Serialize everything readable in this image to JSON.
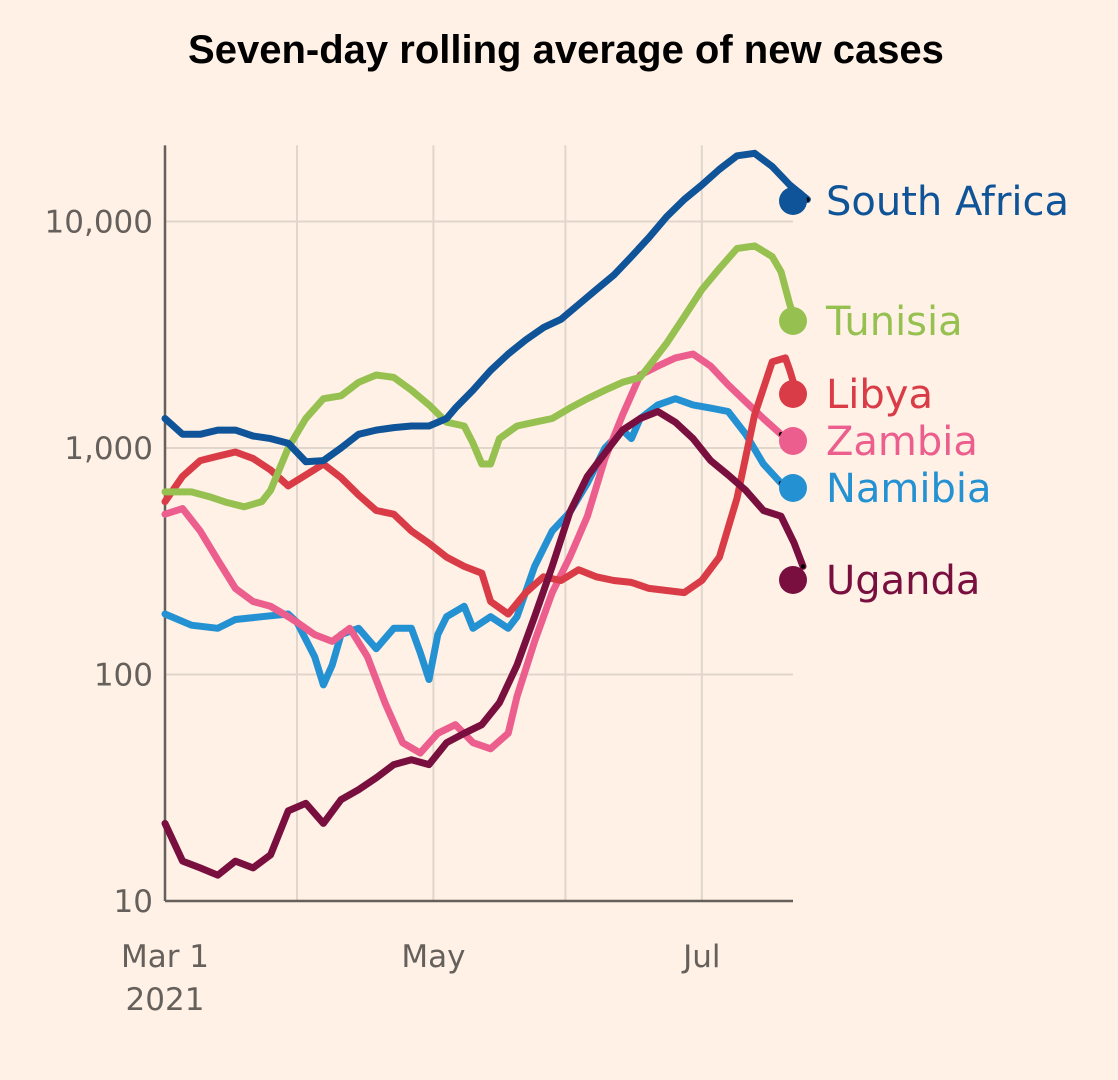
{
  "chart_data": {
    "type": "line",
    "title": "Seven-day rolling average of new cases",
    "xlabel": "",
    "ylabel": "",
    "yscale": "log",
    "ylim": [
      10,
      20000
    ],
    "yticks": [
      {
        "value": 10,
        "label": "10"
      },
      {
        "value": 100,
        "label": "100"
      },
      {
        "value": 1000,
        "label": "1,000"
      },
      {
        "value": 10000,
        "label": "10,000"
      }
    ],
    "x_unit": "days since Mar 1 2021",
    "xlim": [
      0,
      140
    ],
    "xgrid_days": [
      0,
      30,
      61,
      91,
      122
    ],
    "xticks": [
      {
        "day": 0,
        "label": "Mar 1",
        "sublabel": "2021"
      },
      {
        "day": 61,
        "label": "May",
        "sublabel": ""
      },
      {
        "day": 122,
        "label": "Jul",
        "sublabel": ""
      }
    ],
    "series": [
      {
        "name": "Namibia",
        "color": "#2491d3",
        "points": [
          [
            0,
            185
          ],
          [
            6,
            165
          ],
          [
            12,
            160
          ],
          [
            16,
            175
          ],
          [
            22,
            180
          ],
          [
            28,
            185
          ],
          [
            30,
            170
          ],
          [
            34,
            120
          ],
          [
            36,
            90
          ],
          [
            38,
            110
          ],
          [
            40,
            150
          ],
          [
            44,
            160
          ],
          [
            48,
            130
          ],
          [
            52,
            160
          ],
          [
            56,
            160
          ],
          [
            58,
            125
          ],
          [
            60,
            95
          ],
          [
            62,
            150
          ],
          [
            64,
            180
          ],
          [
            68,
            200
          ],
          [
            70,
            160
          ],
          [
            74,
            180
          ],
          [
            78,
            160
          ],
          [
            80,
            180
          ],
          [
            84,
            300
          ],
          [
            88,
            430
          ],
          [
            92,
            520
          ],
          [
            96,
            700
          ],
          [
            100,
            1000
          ],
          [
            104,
            1200
          ],
          [
            106,
            1100
          ],
          [
            108,
            1350
          ],
          [
            112,
            1550
          ],
          [
            116,
            1650
          ],
          [
            120,
            1550
          ],
          [
            124,
            1500
          ],
          [
            128,
            1450
          ],
          [
            132,
            1150
          ],
          [
            136,
            850
          ],
          [
            140,
            700
          ]
        ]
      },
      {
        "name": "Zambia",
        "color": "#eb5e8d",
        "points": [
          [
            0,
            510
          ],
          [
            4,
            540
          ],
          [
            8,
            430
          ],
          [
            12,
            320
          ],
          [
            16,
            240
          ],
          [
            20,
            210
          ],
          [
            24,
            200
          ],
          [
            28,
            180
          ],
          [
            30,
            170
          ],
          [
            34,
            150
          ],
          [
            38,
            140
          ],
          [
            42,
            160
          ],
          [
            46,
            120
          ],
          [
            50,
            75
          ],
          [
            54,
            50
          ],
          [
            58,
            45
          ],
          [
            62,
            55
          ],
          [
            66,
            60
          ],
          [
            70,
            50
          ],
          [
            74,
            47
          ],
          [
            78,
            55
          ],
          [
            80,
            80
          ],
          [
            84,
            140
          ],
          [
            88,
            230
          ],
          [
            92,
            330
          ],
          [
            96,
            500
          ],
          [
            100,
            900
          ],
          [
            104,
            1400
          ],
          [
            108,
            2100
          ],
          [
            112,
            2300
          ],
          [
            116,
            2500
          ],
          [
            120,
            2600
          ],
          [
            124,
            2300
          ],
          [
            128,
            1900
          ],
          [
            132,
            1600
          ],
          [
            136,
            1350
          ],
          [
            140,
            1150
          ]
        ]
      },
      {
        "name": "Libya",
        "color": "#d93c46",
        "points": [
          [
            0,
            580
          ],
          [
            4,
            750
          ],
          [
            8,
            880
          ],
          [
            12,
            920
          ],
          [
            16,
            960
          ],
          [
            20,
            900
          ],
          [
            24,
            800
          ],
          [
            28,
            680
          ],
          [
            32,
            760
          ],
          [
            36,
            850
          ],
          [
            40,
            740
          ],
          [
            44,
            620
          ],
          [
            48,
            530
          ],
          [
            52,
            510
          ],
          [
            56,
            430
          ],
          [
            60,
            380
          ],
          [
            64,
            330
          ],
          [
            68,
            300
          ],
          [
            72,
            280
          ],
          [
            74,
            210
          ],
          [
            78,
            185
          ],
          [
            82,
            230
          ],
          [
            86,
            270
          ],
          [
            90,
            260
          ],
          [
            94,
            290
          ],
          [
            98,
            270
          ],
          [
            102,
            260
          ],
          [
            106,
            255
          ],
          [
            110,
            240
          ],
          [
            114,
            235
          ],
          [
            118,
            230
          ],
          [
            122,
            260
          ],
          [
            126,
            330
          ],
          [
            130,
            600
          ],
          [
            134,
            1400
          ],
          [
            138,
            2400
          ],
          [
            141,
            2500
          ],
          [
            142,
            2200
          ],
          [
            143,
            1900
          ]
        ]
      },
      {
        "name": "Tunisia",
        "color": "#96c151",
        "points": [
          [
            0,
            640
          ],
          [
            6,
            640
          ],
          [
            10,
            610
          ],
          [
            14,
            575
          ],
          [
            18,
            550
          ],
          [
            22,
            580
          ],
          [
            24,
            650
          ],
          [
            28,
            1000
          ],
          [
            32,
            1350
          ],
          [
            36,
            1650
          ],
          [
            40,
            1700
          ],
          [
            44,
            1950
          ],
          [
            48,
            2100
          ],
          [
            52,
            2050
          ],
          [
            56,
            1800
          ],
          [
            60,
            1550
          ],
          [
            64,
            1300
          ],
          [
            68,
            1250
          ],
          [
            70,
            1050
          ],
          [
            72,
            850
          ],
          [
            74,
            850
          ],
          [
            76,
            1100
          ],
          [
            80,
            1250
          ],
          [
            84,
            1300
          ],
          [
            88,
            1350
          ],
          [
            92,
            1500
          ],
          [
            96,
            1650
          ],
          [
            100,
            1800
          ],
          [
            104,
            1950
          ],
          [
            108,
            2050
          ],
          [
            110,
            2300
          ],
          [
            114,
            2900
          ],
          [
            118,
            3800
          ],
          [
            122,
            5000
          ],
          [
            126,
            6200
          ],
          [
            130,
            7600
          ],
          [
            134,
            7800
          ],
          [
            138,
            7000
          ],
          [
            140,
            6000
          ],
          [
            142,
            4300
          ],
          [
            143,
            3800
          ]
        ]
      },
      {
        "name": "South Africa",
        "color": "#0f5499",
        "points": [
          [
            0,
            1350
          ],
          [
            4,
            1150
          ],
          [
            8,
            1150
          ],
          [
            12,
            1200
          ],
          [
            16,
            1200
          ],
          [
            20,
            1130
          ],
          [
            24,
            1100
          ],
          [
            28,
            1050
          ],
          [
            32,
            870
          ],
          [
            36,
            880
          ],
          [
            40,
            1000
          ],
          [
            44,
            1150
          ],
          [
            48,
            1200
          ],
          [
            52,
            1230
          ],
          [
            56,
            1250
          ],
          [
            60,
            1250
          ],
          [
            64,
            1350
          ],
          [
            66,
            1500
          ],
          [
            70,
            1800
          ],
          [
            74,
            2200
          ],
          [
            78,
            2600
          ],
          [
            82,
            3000
          ],
          [
            86,
            3400
          ],
          [
            90,
            3700
          ],
          [
            94,
            4300
          ],
          [
            98,
            5000
          ],
          [
            102,
            5800
          ],
          [
            106,
            7000
          ],
          [
            110,
            8500
          ],
          [
            114,
            10500
          ],
          [
            118,
            12500
          ],
          [
            122,
            14500
          ],
          [
            126,
            17000
          ],
          [
            130,
            19500
          ],
          [
            134,
            20000
          ],
          [
            138,
            17500
          ],
          [
            142,
            14500
          ],
          [
            146,
            12500
          ]
        ]
      },
      {
        "name": "Uganda",
        "color": "#790f3e",
        "points": [
          [
            0,
            22
          ],
          [
            4,
            15
          ],
          [
            8,
            14
          ],
          [
            12,
            13
          ],
          [
            16,
            15
          ],
          [
            20,
            14
          ],
          [
            24,
            16
          ],
          [
            28,
            25
          ],
          [
            32,
            27
          ],
          [
            36,
            22
          ],
          [
            40,
            28
          ],
          [
            44,
            31
          ],
          [
            48,
            35
          ],
          [
            52,
            40
          ],
          [
            56,
            42
          ],
          [
            60,
            40
          ],
          [
            64,
            50
          ],
          [
            68,
            55
          ],
          [
            72,
            60
          ],
          [
            76,
            75
          ],
          [
            80,
            110
          ],
          [
            84,
            180
          ],
          [
            88,
            300
          ],
          [
            92,
            520
          ],
          [
            96,
            750
          ],
          [
            100,
            950
          ],
          [
            104,
            1200
          ],
          [
            108,
            1350
          ],
          [
            112,
            1450
          ],
          [
            116,
            1300
          ],
          [
            120,
            1100
          ],
          [
            124,
            880
          ],
          [
            128,
            760
          ],
          [
            132,
            650
          ],
          [
            136,
            530
          ],
          [
            140,
            500
          ],
          [
            143,
            380
          ],
          [
            145,
            300
          ]
        ]
      }
    ],
    "legend": [
      {
        "label": "South Africa",
        "color": "#0f5499"
      },
      {
        "label": "Tunisia",
        "color": "#96c151"
      },
      {
        "label": "Libya",
        "color": "#d93c46"
      },
      {
        "label": "Zambia",
        "color": "#eb5e8d"
      },
      {
        "label": "Namibia",
        "color": "#2491d3"
      },
      {
        "label": "Uganda",
        "color": "#790f3e"
      }
    ],
    "grid": true,
    "background": "#fff1e5"
  }
}
